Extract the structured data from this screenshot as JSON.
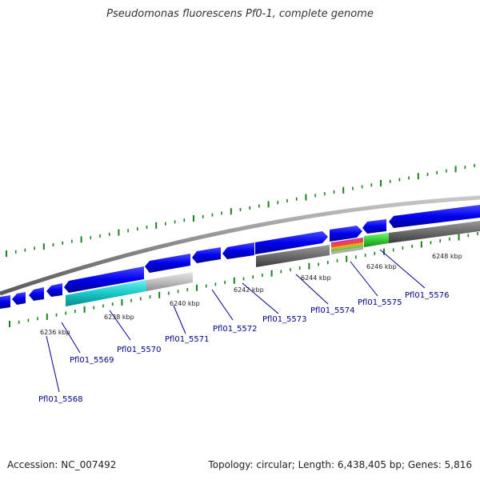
{
  "title": "Pseudomonas fluorescens Pf0-1, complete genome",
  "footer": {
    "accession": "Accession: NC_007492",
    "summary": "Topology: circular; Length: 6,438,405 bp; Genes: 5,816"
  },
  "scale_ticks": [
    {
      "label": "6236 kbp"
    },
    {
      "label": "6238 kbp"
    },
    {
      "label": "6240 kbp"
    },
    {
      "label": "6242 kbp"
    },
    {
      "label": "6244 kbp"
    },
    {
      "label": "6246 kbp"
    },
    {
      "label": "6248 kbp"
    }
  ],
  "gene_labels": [
    {
      "label": "Pfl01_5568"
    },
    {
      "label": "Pfl01_5569"
    },
    {
      "label": "Pfl01_5570"
    },
    {
      "label": "Pfl01_5571"
    },
    {
      "label": "Pfl01_5572"
    },
    {
      "label": "Pfl01_5573"
    },
    {
      "label": "Pfl01_5574"
    },
    {
      "label": "Pfl01_5575"
    },
    {
      "label": "Pfl01_5576"
    }
  ],
  "colors": {
    "cds": "#0000ee",
    "backbone": "#8c8c8c",
    "gc_skew": "#1e7f1e",
    "cyan_track": "#19c8c8",
    "grey_track": "#707070",
    "green_track": "#33cc33"
  }
}
